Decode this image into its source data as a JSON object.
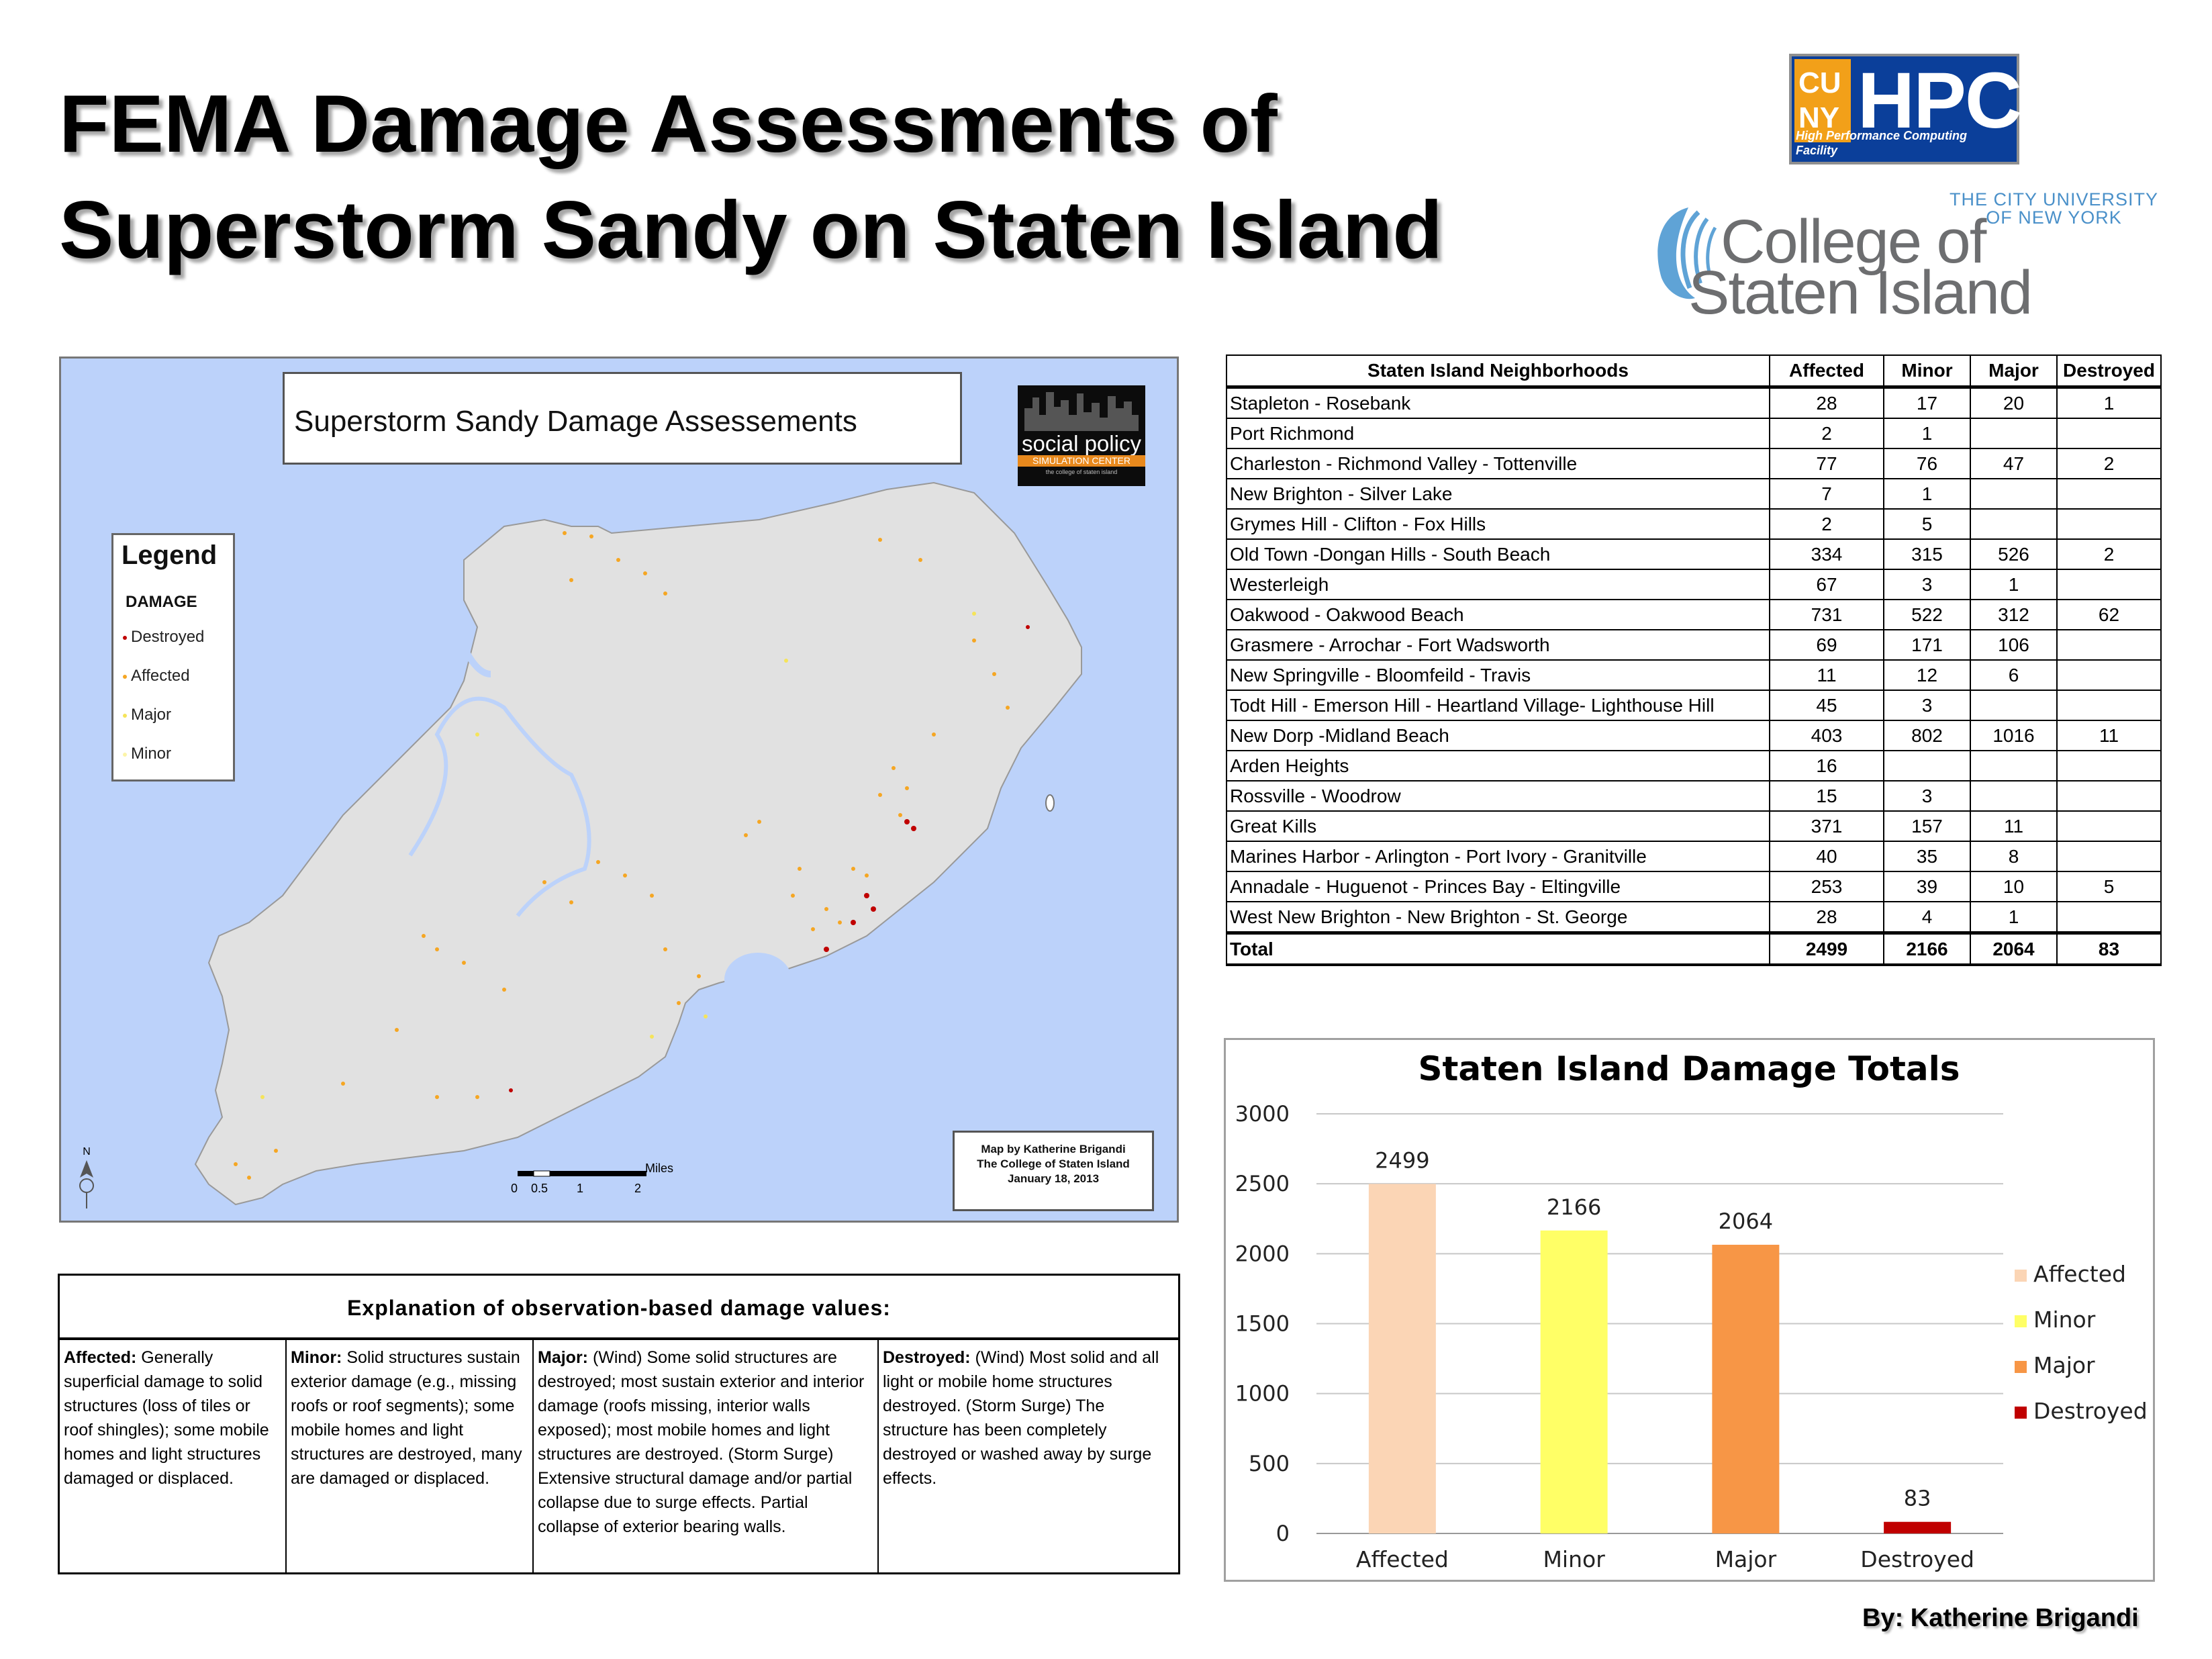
{
  "header": {
    "title_line1": "FEMA Damage Assessments of",
    "title_line2": "Superstorm Sandy on Staten Island"
  },
  "logos": {
    "cuny_hpc": {
      "letters": [
        "CU",
        "NY"
      ],
      "name": "HPC",
      "subtitle": "High Performance Computing Facility"
    },
    "csi": {
      "line1": "THE CITY UNIVERSITY",
      "line2": "OF NEW YORK",
      "name_line1": "College of",
      "name_line2": "Staten Island"
    }
  },
  "map": {
    "title": "Superstorm Sandy Damage Assessements",
    "spsc_logo": {
      "name": "social policy",
      "sub": "SIMULATION CENTER",
      "tiny": "the college of staten island"
    },
    "legend": {
      "title": "Legend",
      "subtitle": "DAMAGE",
      "items": [
        {
          "label": "Destroyed",
          "color": "#c00000"
        },
        {
          "label": "Affected",
          "color": "#f5a623"
        },
        {
          "label": "Major",
          "color": "#f5e45a"
        },
        {
          "label": "Minor",
          "color": "#fcf4a8"
        }
      ]
    },
    "credit": {
      "line1": "Map by Katherine Brigandi",
      "line2": "The College of Staten Island",
      "line3": "January 18, 2013"
    },
    "scale": {
      "unit": "Miles",
      "ticks": [
        "0",
        "0.5",
        "1",
        "2"
      ]
    },
    "colors": {
      "water": "#bcd2fa",
      "land": "#e1e1e1"
    }
  },
  "table": {
    "headers": [
      "Staten Island Neighborhoods",
      "Affected",
      "Minor",
      "Major",
      "Destroyed"
    ],
    "rows": [
      [
        "Stapleton - Rosebank",
        "28",
        "17",
        "20",
        "1"
      ],
      [
        "Port Richmond",
        "2",
        "1",
        "",
        ""
      ],
      [
        "Charleston - Richmond Valley - Tottenville",
        "77",
        "76",
        "47",
        "2"
      ],
      [
        "New Brighton - Silver Lake",
        "7",
        "1",
        "",
        ""
      ],
      [
        "Grymes Hill - Clifton - Fox Hills",
        "2",
        "5",
        "",
        ""
      ],
      [
        "Old Town -Dongan Hills - South Beach",
        "334",
        "315",
        "526",
        "2"
      ],
      [
        "Westerleigh",
        "67",
        "3",
        "1",
        ""
      ],
      [
        "Oakwood - Oakwood Beach",
        "731",
        "522",
        "312",
        "62"
      ],
      [
        "Grasmere - Arrochar - Fort Wadsworth",
        "69",
        "171",
        "106",
        ""
      ],
      [
        "New Springville - Bloomfeild - Travis",
        "11",
        "12",
        "6",
        ""
      ],
      [
        "Todt Hill - Emerson Hill - Heartland Village- Lighthouse Hill",
        "45",
        "3",
        "",
        ""
      ],
      [
        "New Dorp -Midland Beach",
        "403",
        "802",
        "1016",
        "11"
      ],
      [
        "Arden Heights",
        "16",
        "",
        "",
        ""
      ],
      [
        "Rossville - Woodrow",
        "15",
        "3",
        "",
        ""
      ],
      [
        "Great Kills",
        "371",
        "157",
        "11",
        ""
      ],
      [
        "Marines Harbor - Arlington - Port Ivory - Granitville",
        "40",
        "35",
        "8",
        ""
      ],
      [
        "Annadale - Huguenot - Princes Bay - Eltingville",
        "253",
        "39",
        "10",
        "5"
      ],
      [
        "West New Brighton - New Brighton - St. George",
        "28",
        "4",
        "1",
        ""
      ]
    ],
    "total": [
      "Total",
      "2499",
      "2166",
      "2064",
      "83"
    ]
  },
  "explanation": {
    "title": "Explanation of observation-based damage values:",
    "columns": [
      {
        "term": "Affected:",
        "text": "Generally superficial damage to solid structures (loss of tiles or roof shingles); some mobile homes and light structures damaged or displaced."
      },
      {
        "term": "Minor:",
        "text": "Solid structures sustain exterior damage (e.g., missing roofs or roof segments); some mobile homes and light structures are destroyed, many are damaged or displaced."
      },
      {
        "term": "Major:",
        "text": "(Wind) Some solid structures are destroyed; most sustain exterior and interior damage (roofs missing, interior walls exposed); most mobile homes and light structures are destroyed. (Storm Surge) Extensive structural damage and/or partial collapse due to surge effects. Partial collapse of exterior bearing walls."
      },
      {
        "term": "Destroyed:",
        "text": "(Wind) Most solid and all light or mobile home structures destroyed. (Storm Surge) The structure has been completely destroyed or washed away by surge effects."
      }
    ]
  },
  "chart_data": {
    "type": "bar",
    "title": "Staten Island Damage Totals",
    "categories": [
      "Affected",
      "Minor",
      "Major",
      "Destroyed"
    ],
    "values": [
      2499,
      2166,
      2064,
      83
    ],
    "colors": [
      "#fbd5b5",
      "#ffff66",
      "#f79646",
      "#c00000"
    ],
    "ylim": [
      0,
      3000
    ],
    "yticks": [
      "0",
      "500",
      "1000",
      "1500",
      "2000",
      "2500",
      "3000"
    ],
    "grid": true,
    "legend_position": "right",
    "legend": [
      "Affected",
      "Minor",
      "Major",
      "Destroyed"
    ],
    "data_labels": [
      "2499",
      "2166",
      "2064",
      "83"
    ]
  },
  "byline": "By: Katherine Brigandi"
}
